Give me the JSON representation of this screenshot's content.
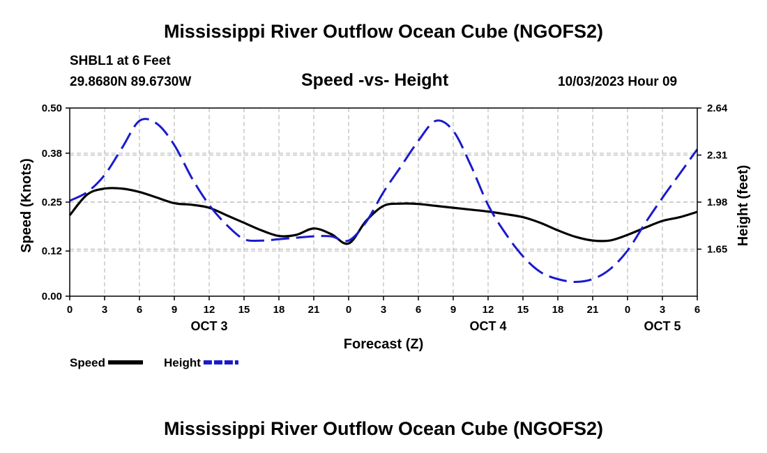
{
  "header": {
    "title": "Mississippi River Outflow Ocean Cube (NGOFS2)",
    "station": "SHBL1 at 6 Feet",
    "coords": "29.8680N  89.6730W",
    "subtitle": "Speed -vs- Height",
    "datetime": "10/03/2023 Hour 09"
  },
  "footer": {
    "title": "Mississippi River Outflow Ocean Cube (NGOFS2)"
  },
  "chart_data": {
    "type": "line",
    "title": "Speed -vs- Height",
    "xlabel": "Forecast (Z)",
    "ylabel": "Speed (Knots)",
    "y2label": "Height (feet)",
    "x_hours_range": [
      0,
      54
    ],
    "ylim": [
      0.0,
      0.5
    ],
    "y2lim": [
      1.32,
      2.64
    ],
    "x_ticks": [
      {
        "h": 0,
        "label": "0"
      },
      {
        "h": 3,
        "label": "3"
      },
      {
        "h": 6,
        "label": "6"
      },
      {
        "h": 9,
        "label": "9"
      },
      {
        "h": 12,
        "label": "12"
      },
      {
        "h": 15,
        "label": "15"
      },
      {
        "h": 18,
        "label": "18"
      },
      {
        "h": 21,
        "label": "21"
      },
      {
        "h": 24,
        "label": "0"
      },
      {
        "h": 27,
        "label": "3"
      },
      {
        "h": 30,
        "label": "6"
      },
      {
        "h": 33,
        "label": "9"
      },
      {
        "h": 36,
        "label": "12"
      },
      {
        "h": 39,
        "label": "15"
      },
      {
        "h": 42,
        "label": "18"
      },
      {
        "h": 45,
        "label": "21"
      },
      {
        "h": 48,
        "label": "0"
      },
      {
        "h": 51,
        "label": "3"
      },
      {
        "h": 54,
        "label": "6"
      }
    ],
    "day_labels": [
      {
        "h": 12,
        "label": "OCT 3"
      },
      {
        "h": 36,
        "label": "OCT 4"
      },
      {
        "h": 51,
        "label": "OCT 5"
      }
    ],
    "y_ticks": [
      {
        "v": 0.0,
        "label": "0.00"
      },
      {
        "v": 0.12,
        "label": "0.12"
      },
      {
        "v": 0.25,
        "label": "0.25"
      },
      {
        "v": 0.38,
        "label": "0.38"
      },
      {
        "v": 0.5,
        "label": "0.50"
      }
    ],
    "y2_ticks": [
      {
        "v": 1.65,
        "label": "1.65"
      },
      {
        "v": 1.98,
        "label": "1.98"
      },
      {
        "v": 2.31,
        "label": "2.31"
      },
      {
        "v": 2.64,
        "label": "2.64"
      }
    ],
    "series": [
      {
        "name": "Speed",
        "axis": "left",
        "color": "#000000",
        "dash": "solid",
        "x": [
          0,
          1.5,
          3,
          4.5,
          6,
          7.5,
          9,
          10.5,
          12,
          13.5,
          15,
          16.5,
          18,
          19.5,
          21,
          22.5,
          24,
          25.5,
          27,
          28.5,
          30,
          31.5,
          33,
          34.5,
          36,
          37.5,
          39,
          40.5,
          42,
          43.5,
          45,
          46.5,
          48,
          49.5,
          51,
          52.5,
          54
        ],
        "y": [
          0.215,
          0.27,
          0.286,
          0.286,
          0.277,
          0.262,
          0.247,
          0.243,
          0.235,
          0.215,
          0.195,
          0.175,
          0.16,
          0.163,
          0.18,
          0.165,
          0.14,
          0.2,
          0.24,
          0.246,
          0.245,
          0.24,
          0.235,
          0.23,
          0.225,
          0.218,
          0.21,
          0.195,
          0.175,
          0.158,
          0.148,
          0.148,
          0.163,
          0.182,
          0.2,
          0.21,
          0.224
        ]
      },
      {
        "name": "Height",
        "axis": "right",
        "color": "#1a1acc",
        "dash": "dashed",
        "x": [
          0,
          1.5,
          3,
          4.5,
          6,
          7.5,
          9,
          10.5,
          12,
          13.5,
          15,
          16.5,
          18,
          19.5,
          21,
          22.5,
          24,
          25.5,
          27,
          28.5,
          30,
          31.5,
          33,
          34.5,
          36,
          37.5,
          39,
          40.5,
          42,
          43.5,
          45,
          46.5,
          48,
          49.5,
          51,
          52.5,
          54
        ],
        "y": [
          1.99,
          2.05,
          2.17,
          2.36,
          2.55,
          2.53,
          2.38,
          2.15,
          1.96,
          1.82,
          1.72,
          1.71,
          1.72,
          1.73,
          1.74,
          1.74,
          1.71,
          1.84,
          2.05,
          2.23,
          2.41,
          2.55,
          2.48,
          2.24,
          1.96,
          1.76,
          1.6,
          1.49,
          1.44,
          1.42,
          1.44,
          1.51,
          1.64,
          1.83,
          2.01,
          2.18,
          2.35
        ]
      }
    ],
    "legend": [
      {
        "label": "Speed",
        "color": "#000000",
        "dash": "solid"
      },
      {
        "label": "Height",
        "color": "#1a1acc",
        "dash": "dashed"
      }
    ]
  }
}
